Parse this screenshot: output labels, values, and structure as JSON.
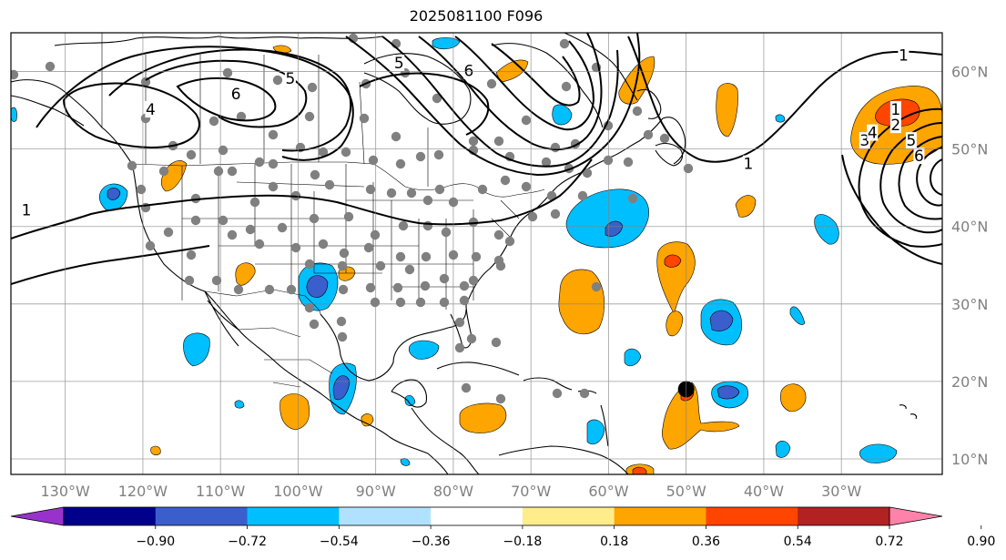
{
  "title": "2025081100 F096",
  "map": {
    "lon_min": -137,
    "lon_max": -17,
    "lat_min": 8,
    "lat_max": 65,
    "lon_ticks": [
      {
        "value": -130,
        "label": "130°W"
      },
      {
        "value": -120,
        "label": "120°W"
      },
      {
        "value": -110,
        "label": "110°W"
      },
      {
        "value": -100,
        "label": "100°W"
      },
      {
        "value": -90,
        "label": "90°W"
      },
      {
        "value": -80,
        "label": "80°W"
      },
      {
        "value": -70,
        "label": "70°W"
      },
      {
        "value": -60,
        "label": "60°W"
      },
      {
        "value": -50,
        "label": "50°W"
      },
      {
        "value": -40,
        "label": "40°W"
      },
      {
        "value": -30,
        "label": "30°W"
      }
    ],
    "lat_ticks": [
      {
        "value": 60,
        "label": "60°N"
      },
      {
        "value": 50,
        "label": "50°N"
      },
      {
        "value": 40,
        "label": "40°N"
      },
      {
        "value": 30,
        "label": "30°N"
      },
      {
        "value": 20,
        "label": "20°N"
      },
      {
        "value": 10,
        "label": "10°N"
      }
    ],
    "grid": true
  },
  "colorbar": {
    "colors": [
      "#9932CC",
      "#00008B",
      "#3A5FCD",
      "#00BFFF",
      "#B0E2FF",
      "#FFFFFF",
      "#FFEC8B",
      "#FFA500",
      "#FF4500",
      "#B22222",
      "#FF82AB"
    ],
    "labels": [
      "−0.90",
      "−0.72",
      "−0.54",
      "−0.36",
      "−0.18",
      "0.18",
      "0.36",
      "0.54",
      "0.72",
      "0.90"
    ]
  },
  "contour_labels": [
    {
      "text": "1",
      "lon": -135,
      "lat": 42
    },
    {
      "text": "1",
      "lon": -22,
      "lat": 62
    },
    {
      "text": "1",
      "lon": -42,
      "lat": 48
    },
    {
      "text": "1",
      "lon": -23,
      "lat": 55
    },
    {
      "text": "2",
      "lon": -23,
      "lat": 53
    },
    {
      "text": "3",
      "lon": -27,
      "lat": 51
    },
    {
      "text": "4",
      "lon": -119,
      "lat": 55
    },
    {
      "text": "4",
      "lon": -26,
      "lat": 52
    },
    {
      "text": "5",
      "lon": -101,
      "lat": 59
    },
    {
      "text": "5",
      "lon": -87,
      "lat": 61
    },
    {
      "text": "5",
      "lon": -21,
      "lat": 51
    },
    {
      "text": "6",
      "lon": -108,
      "lat": 57
    },
    {
      "text": "6",
      "lon": -78,
      "lat": 60
    },
    {
      "text": "6",
      "lon": -20,
      "lat": 49
    }
  ],
  "marker": {
    "lon": -50,
    "lat": 19
  }
}
